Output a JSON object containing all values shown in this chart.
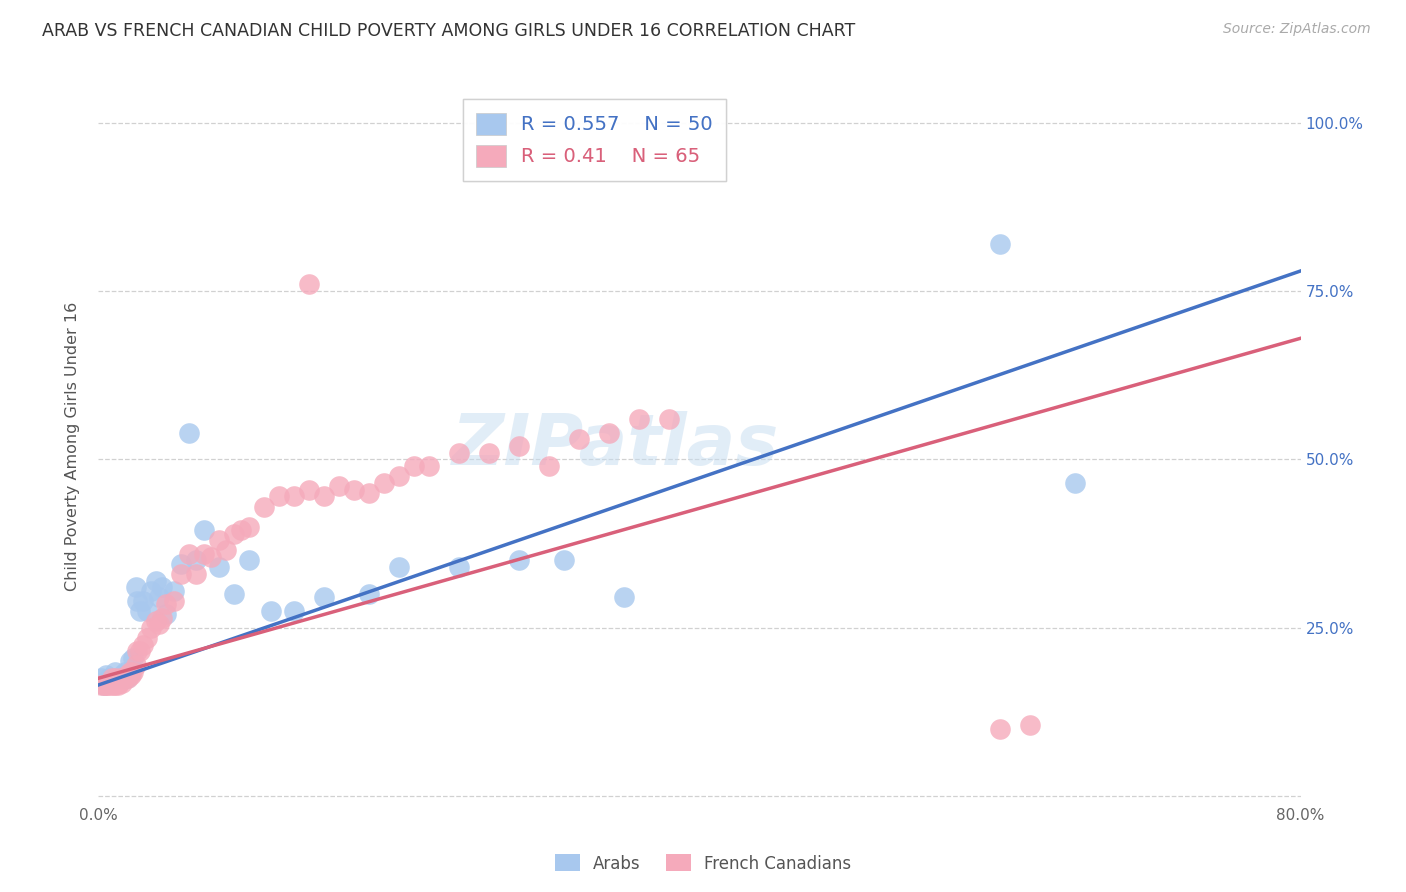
{
  "title": "ARAB VS FRENCH CANADIAN CHILD POVERTY AMONG GIRLS UNDER 16 CORRELATION CHART",
  "source": "Source: ZipAtlas.com",
  "ylabel": "Child Poverty Among Girls Under 16",
  "xlim": [
    0.0,
    0.8
  ],
  "ylim": [
    -0.01,
    1.05
  ],
  "arab_R": 0.557,
  "arab_N": 50,
  "fc_R": 0.41,
  "fc_N": 65,
  "arab_color": "#A8C8EE",
  "fc_color": "#F5AABB",
  "arab_line_color": "#4472C4",
  "fc_line_color": "#D9607A",
  "watermark": "ZIPatlas",
  "background": "#FFFFFF",
  "grid_color": "#CCCCCC",
  "arab_line_x0": 0.0,
  "arab_line_y0": 0.165,
  "arab_line_x1": 0.8,
  "arab_line_y1": 0.78,
  "fc_line_x0": 0.0,
  "fc_line_y0": 0.175,
  "fc_line_x1": 0.8,
  "fc_line_y1": 0.68,
  "arab_points_x": [
    0.002,
    0.004,
    0.005,
    0.006,
    0.007,
    0.008,
    0.009,
    0.01,
    0.011,
    0.012,
    0.013,
    0.014,
    0.015,
    0.016,
    0.017,
    0.018,
    0.019,
    0.02,
    0.021,
    0.022,
    0.023,
    0.025,
    0.026,
    0.028,
    0.03,
    0.032,
    0.035,
    0.038,
    0.04,
    0.042,
    0.045,
    0.05,
    0.055,
    0.06,
    0.065,
    0.07,
    0.08,
    0.09,
    0.1,
    0.115,
    0.13,
    0.15,
    0.18,
    0.2,
    0.24,
    0.28,
    0.31,
    0.35,
    0.6,
    0.65
  ],
  "arab_points_y": [
    0.175,
    0.165,
    0.18,
    0.17,
    0.175,
    0.175,
    0.175,
    0.175,
    0.185,
    0.175,
    0.175,
    0.175,
    0.175,
    0.18,
    0.175,
    0.185,
    0.175,
    0.18,
    0.2,
    0.185,
    0.205,
    0.31,
    0.29,
    0.275,
    0.29,
    0.275,
    0.305,
    0.32,
    0.295,
    0.31,
    0.27,
    0.305,
    0.345,
    0.54,
    0.35,
    0.395,
    0.34,
    0.3,
    0.35,
    0.275,
    0.275,
    0.295,
    0.3,
    0.34,
    0.34,
    0.35,
    0.35,
    0.295,
    0.82,
    0.465
  ],
  "fc_points_x": [
    0.002,
    0.004,
    0.005,
    0.006,
    0.007,
    0.008,
    0.009,
    0.01,
    0.011,
    0.012,
    0.013,
    0.014,
    0.015,
    0.016,
    0.017,
    0.018,
    0.019,
    0.02,
    0.021,
    0.022,
    0.023,
    0.025,
    0.026,
    0.028,
    0.03,
    0.032,
    0.035,
    0.038,
    0.04,
    0.042,
    0.045,
    0.05,
    0.055,
    0.06,
    0.065,
    0.07,
    0.075,
    0.08,
    0.085,
    0.09,
    0.095,
    0.1,
    0.11,
    0.12,
    0.13,
    0.14,
    0.15,
    0.16,
    0.17,
    0.18,
    0.19,
    0.2,
    0.21,
    0.22,
    0.24,
    0.26,
    0.28,
    0.3,
    0.32,
    0.34,
    0.36,
    0.38,
    0.6,
    0.62,
    0.14
  ],
  "fc_points_y": [
    0.165,
    0.165,
    0.165,
    0.165,
    0.168,
    0.165,
    0.175,
    0.165,
    0.165,
    0.175,
    0.165,
    0.168,
    0.175,
    0.168,
    0.175,
    0.175,
    0.18,
    0.175,
    0.185,
    0.18,
    0.185,
    0.195,
    0.215,
    0.215,
    0.225,
    0.235,
    0.25,
    0.26,
    0.255,
    0.265,
    0.285,
    0.29,
    0.33,
    0.36,
    0.33,
    0.36,
    0.355,
    0.38,
    0.365,
    0.39,
    0.395,
    0.4,
    0.43,
    0.445,
    0.445,
    0.455,
    0.445,
    0.46,
    0.455,
    0.45,
    0.465,
    0.475,
    0.49,
    0.49,
    0.51,
    0.51,
    0.52,
    0.49,
    0.53,
    0.54,
    0.56,
    0.56,
    0.1,
    0.105,
    0.76
  ]
}
